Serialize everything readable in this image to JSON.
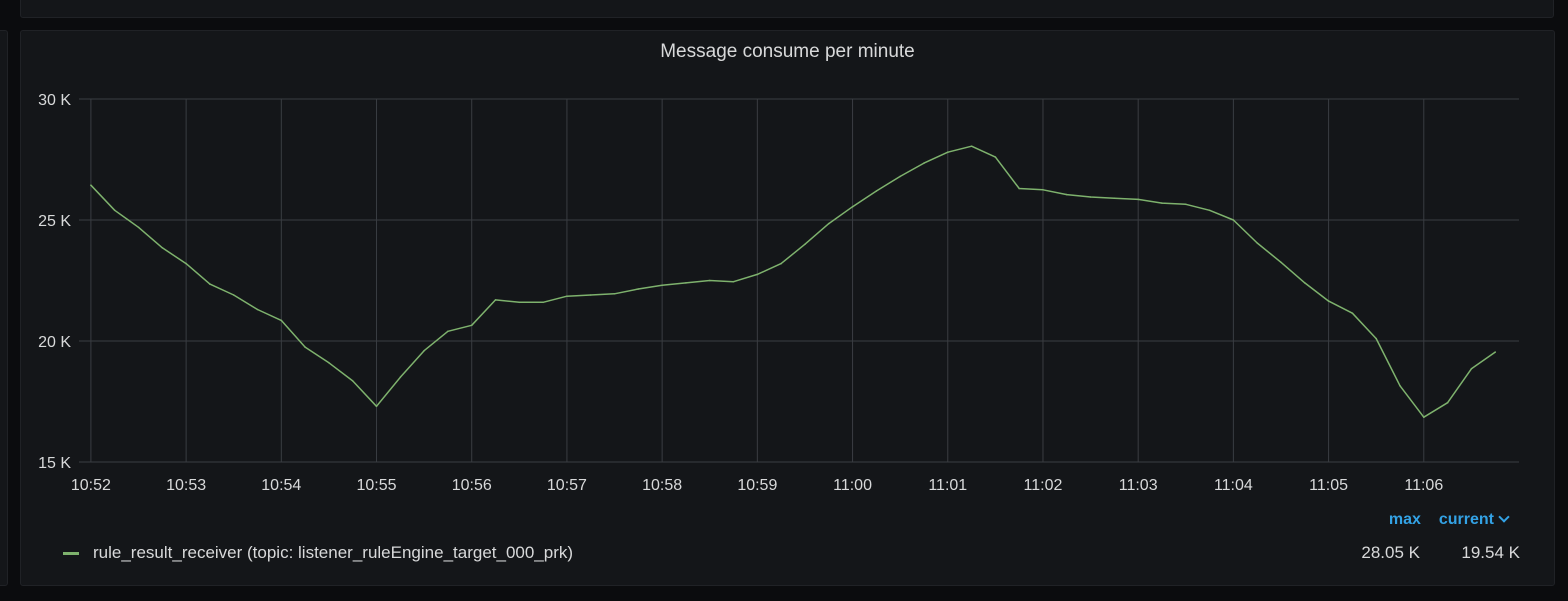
{
  "colors": {
    "series": "#7eb26d",
    "grid": "#3a3d42",
    "accent": "#33a2e5",
    "text": "#d8d9da"
  },
  "panel": {
    "title": "Message consume per minute"
  },
  "legend": {
    "max_label": "max",
    "current_label": "current",
    "current_icon": "chevron-down-icon",
    "series_name": "rule_result_receiver (topic: listener_ruleEngine_target_000_prk)",
    "max_value": "28.05 K",
    "current_value": "19.54 K"
  },
  "chart_data": {
    "type": "line",
    "title": "Message consume per minute",
    "xlabel": "",
    "ylabel": "",
    "ylim": [
      15000,
      30000
    ],
    "yticks": [
      15000,
      20000,
      25000,
      30000
    ],
    "ytick_labels": [
      "15 K",
      "20 K",
      "25 K",
      "30 K"
    ],
    "xlim": [
      "10:52:00",
      "11:06:45"
    ],
    "xticks": [
      "10:52",
      "10:53",
      "10:54",
      "10:55",
      "10:56",
      "10:57",
      "10:58",
      "10:59",
      "11:00",
      "11:01",
      "11:02",
      "11:03",
      "11:04",
      "11:05",
      "11:06"
    ],
    "grid": true,
    "legend_position": "bottom",
    "series": [
      {
        "name": "rule_result_receiver (topic: listener_ruleEngine_target_000_prk)",
        "color": "#7eb26d",
        "x": [
          "10:52:00",
          "10:52:15",
          "10:52:30",
          "10:52:45",
          "10:53:00",
          "10:53:15",
          "10:53:30",
          "10:53:45",
          "10:54:00",
          "10:54:15",
          "10:54:30",
          "10:54:45",
          "10:55:00",
          "10:55:15",
          "10:55:30",
          "10:55:45",
          "10:56:00",
          "10:56:15",
          "10:56:30",
          "10:56:45",
          "10:57:00",
          "10:57:15",
          "10:57:30",
          "10:57:45",
          "10:58:00",
          "10:58:15",
          "10:58:30",
          "10:58:45",
          "10:59:00",
          "10:59:15",
          "10:59:30",
          "10:59:45",
          "11:00:00",
          "11:00:15",
          "11:00:30",
          "11:00:45",
          "11:01:00",
          "11:01:15",
          "11:01:30",
          "11:01:45",
          "11:02:00",
          "11:02:15",
          "11:02:30",
          "11:02:45",
          "11:03:00",
          "11:03:15",
          "11:03:30",
          "11:03:45",
          "11:04:00",
          "11:04:15",
          "11:04:30",
          "11:04:45",
          "11:05:00",
          "11:05:15",
          "11:05:30",
          "11:05:45",
          "11:06:00",
          "11:06:15",
          "11:06:30",
          "11:06:45"
        ],
        "values": [
          26440,
          25400,
          24700,
          23850,
          23200,
          22350,
          21900,
          21300,
          20850,
          19750,
          19100,
          18350,
          17300,
          18500,
          19600,
          20400,
          20650,
          21700,
          21600,
          21600,
          21850,
          21900,
          21950,
          22150,
          22300,
          22400,
          22500,
          22450,
          22750,
          23200,
          24000,
          24850,
          25550,
          26200,
          26800,
          27350,
          27800,
          28050,
          27600,
          26300,
          26250,
          26050,
          25950,
          25900,
          25850,
          25700,
          25650,
          25400,
          25000,
          24050,
          23250,
          22400,
          21650,
          21150,
          20100,
          18150,
          16850,
          17450,
          18850,
          19540
        ]
      }
    ]
  }
}
